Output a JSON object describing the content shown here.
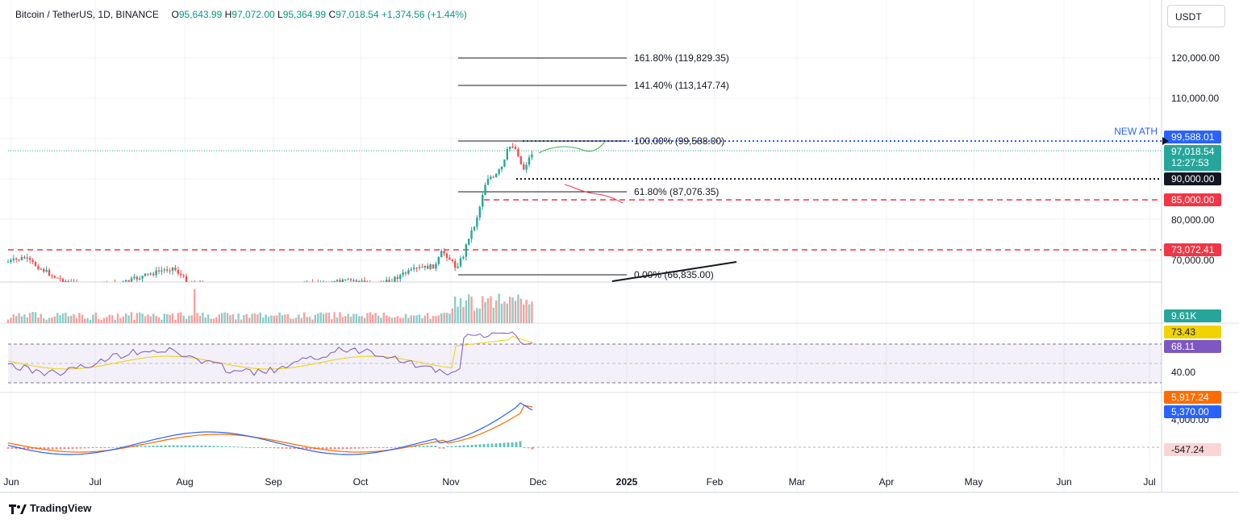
{
  "header": {
    "symbol": "Bitcoin / TetherUS, 1D, BINANCE",
    "open_label": "O",
    "open": "95,643.99",
    "high_label": "H",
    "high": "97,072.00",
    "low_label": "L",
    "low": "95,364.99",
    "close_label": "C",
    "close": "97,018.54",
    "change": "+1,374.56 (+1.44%)"
  },
  "unit": "USDT",
  "brand": "TradingView",
  "colors": {
    "up": "#26a69a",
    "down": "#ef5350",
    "price_line": "#26a69a",
    "ath": "#2962ff",
    "level_red": "#f23645",
    "rsi": "#7e57c2",
    "rsi_ma": "#f0d300",
    "macd": "#2962ff",
    "signal": "#ff6d00"
  },
  "chart_data": {
    "type": "candlestick",
    "price_axis": {
      "ticks": [
        "120,000.00",
        "110,000.00",
        "80,000.00",
        "70,000.00"
      ],
      "tick_values": [
        120000,
        110000,
        80000,
        70000
      ]
    },
    "time_axis": [
      "Jun",
      "Jul",
      "Aug",
      "Sep",
      "Oct",
      "Nov",
      "Dec",
      "2025",
      "Feb",
      "Mar",
      "Apr",
      "May",
      "Jun",
      "Jul"
    ],
    "fib_levels": [
      {
        "label": "161.80% (119,829.35)",
        "value": 119829.35
      },
      {
        "label": "141.40% (113,147.74)",
        "value": 113147.74
      },
      {
        "label": "100.00% (99,588.00)",
        "value": 99588.0
      },
      {
        "label": "61.80% (87,076.35)",
        "value": 87076.35
      },
      {
        "label": "0.00% (66,835.00)",
        "value": 66835.0
      }
    ],
    "annotation": "NEW ATH",
    "price_labels": [
      {
        "text": "99,588.01",
        "value": 99588.01,
        "color": "#2962ff"
      },
      {
        "text": "97,018.54",
        "sub": "12:27:53",
        "value": 97018.54,
        "color": "#26a69a"
      },
      {
        "text": "90,000.00",
        "value": 90000,
        "color": "#131722"
      },
      {
        "text": "85,000.00",
        "value": 85000,
        "color": "#f23645"
      },
      {
        "text": "73,072.41",
        "value": 73072.41,
        "color": "#f23645"
      }
    ],
    "volume_label": "9.61K",
    "rsi": {
      "ticks": [
        "40.00"
      ],
      "ma_label": "73.43",
      "value_label": "68.11"
    },
    "macd": {
      "tick": "4,000.00",
      "signal_label": "5,917.24",
      "macd_label": "5,370.00",
      "hist_label": "-547.24"
    }
  }
}
